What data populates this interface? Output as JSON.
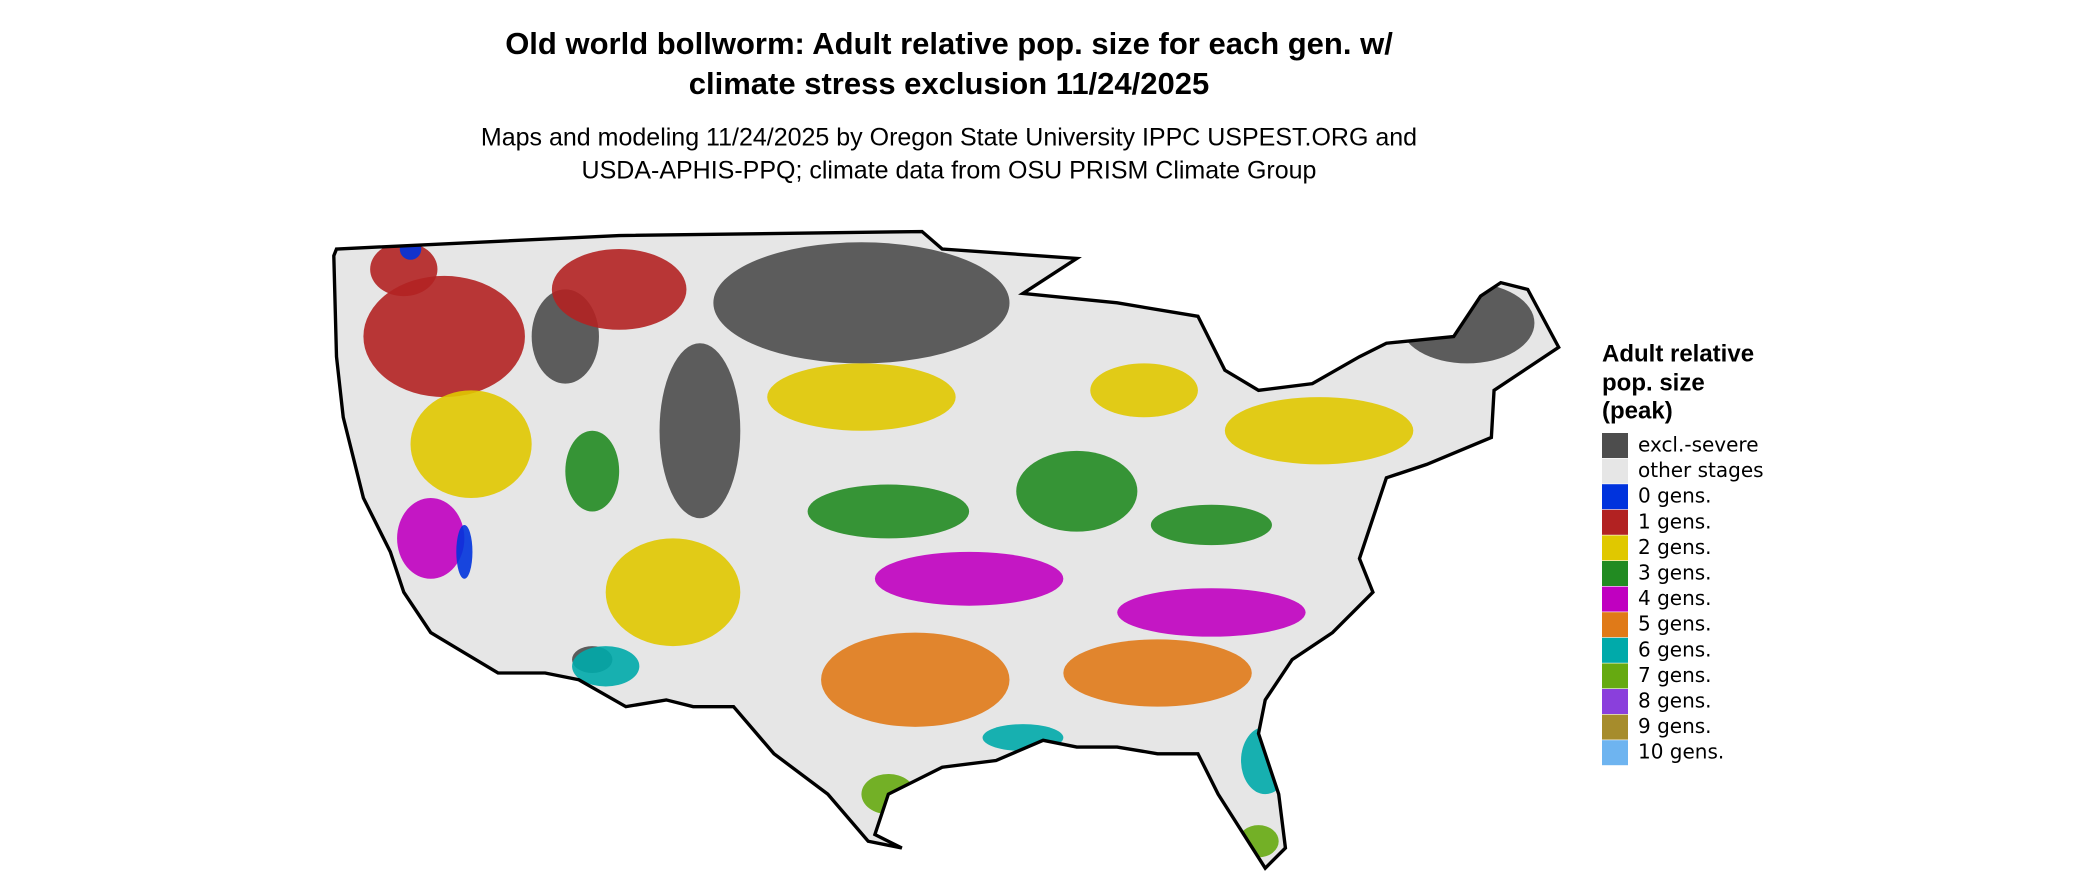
{
  "title": [
    "Old world bollworm: Adult relative pop. size for each gen. w/",
    "climate stress exclusion 11/24/2025"
  ],
  "subtitle": [
    "Maps and modeling 11/24/2025 by Oregon State University IPPC USPEST.ORG and",
    "USDA-APHIS-PPQ; climate data from OSU PRISM Climate Group"
  ],
  "legend": {
    "title": [
      "Adult relative",
      "pop. size",
      "(peak)"
    ],
    "entries": [
      {
        "label": "excl.-severe",
        "color": "#4d4d4d"
      },
      {
        "label": "other stages",
        "color": "#e6e6e6"
      },
      {
        "label": "0 gens.",
        "color": "#0033dd"
      },
      {
        "label": "1 gens.",
        "color": "#b22222"
      },
      {
        "label": "2 gens.",
        "color": "#e0c800"
      },
      {
        "label": "3 gens.",
        "color": "#228b22"
      },
      {
        "label": "4 gens.",
        "color": "#c000c0"
      },
      {
        "label": "5 gens.",
        "color": "#e07a18"
      },
      {
        "label": "6 gens.",
        "color": "#00aaaa"
      },
      {
        "label": "7 gens.",
        "color": "#66aa11"
      },
      {
        "label": "8 gens.",
        "color": "#8a3fdc"
      },
      {
        "label": "9 gens.",
        "color": "#a68c2c"
      },
      {
        "label": "10 gens.",
        "color": "#6eb4f0"
      }
    ]
  }
}
